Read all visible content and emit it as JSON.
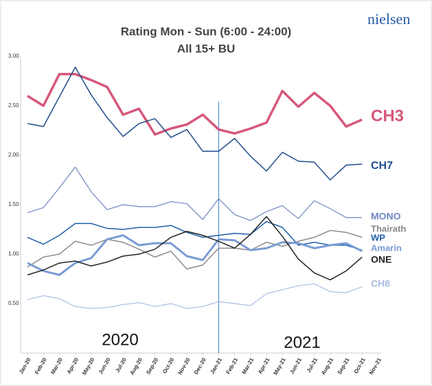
{
  "logo": "nielsen",
  "chart_data": {
    "type": "line",
    "title": "Rating Mon - Sun (6:00 - 24:00)",
    "subtitle": "All 15+ BU",
    "annotations": [
      "2020",
      "2021"
    ],
    "categories": [
      "Jan-20",
      "Feb-20",
      "Mar-20",
      "Apr-20",
      "May-20",
      "Jun-20",
      "Jul-20",
      "Aug-20",
      "Sep-20",
      "Oct-20",
      "Nov-20",
      "Dec-20",
      "Jan-21",
      "Feb-21",
      "Mar-21",
      "Apr-21",
      "May-21",
      "Jun-21",
      "Jul-21",
      "Aug-21",
      "Sep-21",
      "Oct-21",
      "Nov-21"
    ],
    "ylim": [
      0,
      3
    ],
    "yticks": [
      {
        "value": 0.5,
        "label": "0.50"
      },
      {
        "value": 1,
        "label": "1.00"
      },
      {
        "value": 1.5,
        "label": "1.50"
      },
      {
        "value": 2,
        "label": "2.00"
      },
      {
        "value": 2.5,
        "label": "2.50"
      },
      {
        "value": 3,
        "label": "3.00"
      }
    ],
    "series": [
      {
        "name": "CH3",
        "color": "#d6577a",
        "values": [
          2.6,
          2.5,
          2.82,
          2.82,
          2.76,
          2.69,
          2.41,
          2.47,
          2.21,
          2.27,
          2.31,
          2.41,
          2.26,
          2.22,
          2.27,
          2.33,
          2.65,
          2.49,
          2.63,
          2.5,
          2.29,
          2.36,
          null
        ]
      },
      {
        "name": "CH7",
        "color": "#1f4e8c",
        "values": [
          2.32,
          2.29,
          2.59,
          2.89,
          2.61,
          2.38,
          2.19,
          2.32,
          2.37,
          2.18,
          2.26,
          2.04,
          2.04,
          2.17,
          1.99,
          1.84,
          2.03,
          1.94,
          1.93,
          1.75,
          1.9,
          1.91,
          null
        ]
      },
      {
        "name": "MONO",
        "color": "#6f86c0",
        "values": [
          1.42,
          1.47,
          1.67,
          1.88,
          1.63,
          1.45,
          1.5,
          1.48,
          1.48,
          1.53,
          1.51,
          1.35,
          1.56,
          1.4,
          1.34,
          1.43,
          1.49,
          1.36,
          1.54,
          1.46,
          1.37,
          1.37,
          null
        ]
      },
      {
        "name": "Thairath",
        "color": "#8a8a8a",
        "values": [
          0.87,
          0.97,
          1.0,
          1.13,
          1.09,
          1.15,
          1.12,
          1.05,
          0.97,
          1.03,
          0.85,
          0.89,
          1.06,
          1.06,
          1.04,
          1.12,
          1.08,
          1.13,
          1.17,
          1.24,
          1.22,
          1.17,
          null
        ]
      },
      {
        "name": "WP",
        "color": "#1f5fa8",
        "values": [
          1.17,
          1.1,
          1.19,
          1.31,
          1.31,
          1.26,
          1.25,
          1.27,
          1.27,
          1.29,
          1.22,
          1.17,
          1.19,
          1.21,
          1.2,
          1.33,
          1.27,
          1.09,
          1.12,
          1.09,
          1.09,
          1.04,
          null
        ]
      },
      {
        "name": "Amarin",
        "color": "#7a9bd4",
        "values": [
          0.91,
          0.83,
          0.79,
          0.91,
          0.96,
          1.15,
          1.19,
          1.09,
          1.11,
          1.11,
          0.98,
          0.94,
          1.15,
          1.14,
          1.04,
          1.06,
          1.12,
          1.11,
          1.06,
          1.09,
          1.11,
          1.03,
          null
        ]
      },
      {
        "name": "ONE",
        "color": "#222222",
        "values": [
          0.79,
          0.84,
          0.91,
          0.93,
          0.88,
          0.92,
          0.98,
          1.0,
          1.05,
          1.17,
          1.23,
          1.19,
          1.13,
          1.06,
          1.2,
          1.38,
          1.18,
          0.95,
          0.81,
          0.74,
          0.83,
          0.97,
          null
        ]
      },
      {
        "name": "CH8",
        "color": "#a9bde3",
        "values": [
          0.54,
          0.58,
          0.55,
          0.47,
          0.45,
          0.46,
          0.49,
          0.51,
          0.47,
          0.5,
          0.45,
          0.47,
          0.52,
          0.5,
          0.48,
          0.6,
          0.64,
          0.68,
          0.7,
          0.62,
          0.61,
          0.67,
          null
        ]
      }
    ]
  }
}
